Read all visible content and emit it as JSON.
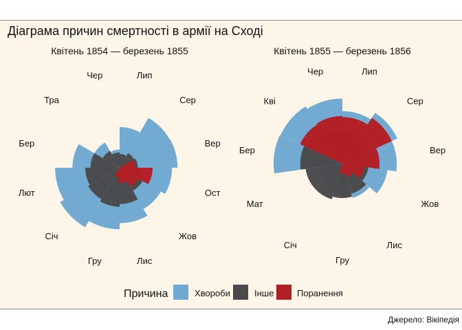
{
  "title": "Діаграма причин смертності в армії на Сході",
  "source": "Джерело: Вікіпедія",
  "colors": {
    "background": "#fdf6e8",
    "disease": "#6fa8d1",
    "other": "#4a4a4a",
    "wounds": "#b21f24"
  },
  "chart_data": [
    {
      "type": "polar-area",
      "title": "Квітень 1854 — березень 1855",
      "month_labels": [
        "Лип",
        "Сер",
        "Вер",
        "Ост",
        "Жов",
        "Лис",
        "Гру",
        "Січ",
        "Лют",
        "Бер",
        "Тра",
        "Чер"
      ],
      "series": [
        {
          "name": "Хвороби",
          "color": "#6fa8d1",
          "values": [
            35,
            70,
            71,
            58,
            48,
            65,
            80,
            100,
            88,
            47,
            18,
            7
          ]
        },
        {
          "name": "Інше",
          "color": "#4a4a4a",
          "values": [
            4,
            6,
            7,
            9,
            15,
            28,
            32,
            28,
            25,
            18,
            8,
            5
          ]
        },
        {
          "name": "Поранення",
          "color": "#b21f24",
          "values": [
            0,
            0,
            5,
            23,
            10,
            5,
            2,
            0,
            0,
            0,
            0,
            0
          ]
        }
      ]
    },
    {
      "type": "polar-area",
      "title": "Квітень 1855 — березень 1856",
      "month_labels": [
        "Лип",
        "Сер",
        "Вер",
        "Жов",
        "Лис",
        "Гру",
        "Січ",
        "Мат",
        "Бер",
        "Кві",
        "Чер"
      ],
      "series": [
        {
          "name": "Хвороби",
          "color": "#6fa8d1",
          "values": [
            28,
            37,
            30,
            21,
            13,
            10,
            9,
            6,
            48,
            47,
            43
          ]
        },
        {
          "name": "Інше",
          "color": "#4a4a4a",
          "values": [
            10,
            9,
            8,
            7,
            10,
            12,
            14,
            14,
            18,
            15,
            11
          ]
        },
        {
          "name": "Поранення",
          "color": "#b21f24",
          "values": [
            22,
            30,
            14,
            5,
            2,
            1,
            0,
            0,
            0,
            22,
            23
          ]
        }
      ]
    }
  ],
  "legend": {
    "title": "Причина",
    "items": [
      {
        "label": "Хвороби",
        "color": "#6fa8d1"
      },
      {
        "label": "Інше",
        "color": "#4a4a4a"
      },
      {
        "label": "Поранення",
        "color": "#b21f24"
      }
    ]
  }
}
